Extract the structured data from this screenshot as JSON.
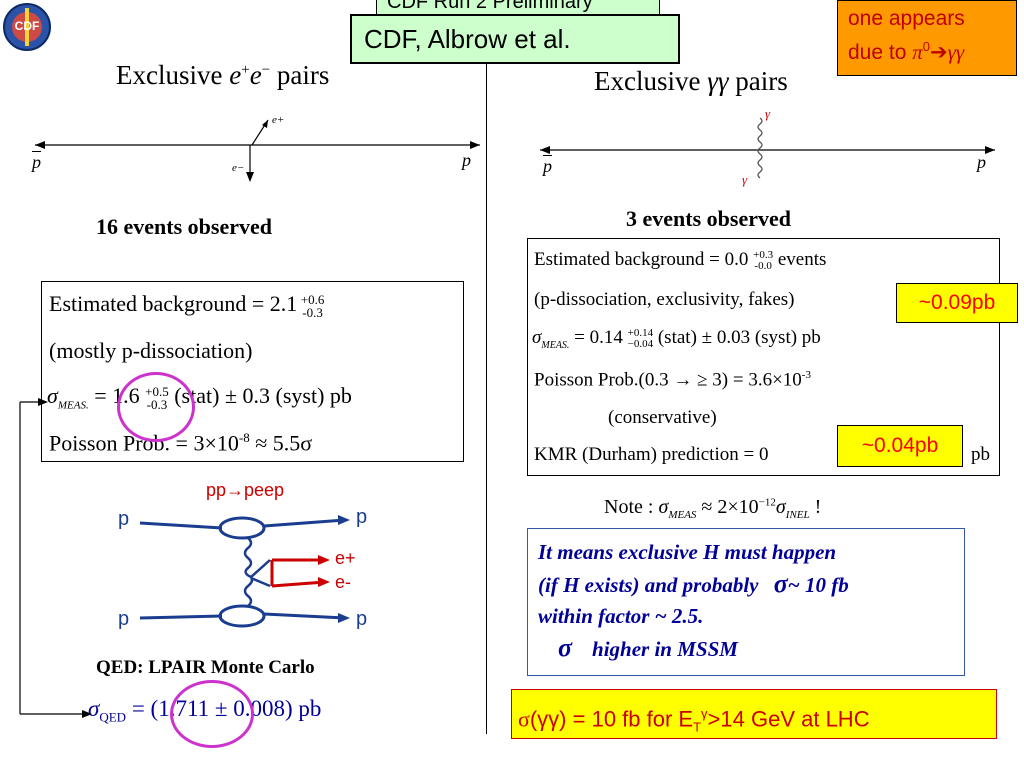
{
  "header": {
    "logo_text": "CDF",
    "cut_banner_text": "CDF Run 2 Preliminary",
    "citation": "CDF,  Albrow et al.",
    "note_line1": "one appears",
    "note_line2_prefix": "due to ",
    "note_pi": "π",
    "note_sup": "0",
    "note_arrow": "➔",
    "note_gg": "γγ"
  },
  "left": {
    "title_prefix": "Exclusive ",
    "title_e": "e",
    "title_plus": "+",
    "title_minus": "−",
    "title_suffix": " pairs",
    "diagram": {
      "pbar": "p",
      "p": "p",
      "eplus": "e+",
      "eminus": "e−"
    },
    "events": "16 events observed",
    "box": {
      "bg_label": "Estimated background = 2.1",
      "bg_up": "+0.6",
      "bg_down": "-0.3",
      "bg_source": "(mostly p-dissociation)",
      "sigma": "σ",
      "meas_sub": "MEAS.",
      "eq": " = ",
      "value": "1.6",
      "val_up": "+0.5",
      "val_down": "-0.3",
      "stat": " (stat) ± 0.3 (syst) pb",
      "poisson": "Poisson Prob. = 3×10",
      "poisson_exp": "-8",
      "poisson_sig": " ≈ 5.5σ"
    },
    "feynman": {
      "title": "pp→peep",
      "p_top_left": "p",
      "p_top_right": "p",
      "p_bot_left": "p",
      "p_bot_right": "p",
      "eplus": "e+",
      "eminus": "e-"
    },
    "mc_label": "QED: LPAIR Monte Carlo",
    "qed_sigma": "σ",
    "qed_sub": "QED",
    "qed_value": " = (1.711 ± 0.008) pb"
  },
  "right": {
    "title_prefix": "Exclusive ",
    "title_gg": "γγ",
    "title_suffix": " pairs",
    "diagram": {
      "pbar": "p",
      "p": "p",
      "g_top": "γ",
      "g_bot": "γ"
    },
    "events": "3 events observed",
    "box": {
      "bg_label": "Estimated background = 0.0",
      "bg_up": "+0.3",
      "bg_down": "-0.0",
      "bg_unit": " events",
      "bg_source": "(p-dissociation, exclusivity, fakes)",
      "sigma": "σ",
      "meas_sub": "MEAS.",
      "value": " = 0.14",
      "val_up": "+0.14",
      "val_down": "−0.04",
      "stat": " (stat) ± 0.03 (syst) pb",
      "poisson": "Poisson Prob.(0.3 → ≥ 3) = 3.6×10",
      "poisson_exp": "-3",
      "conservative": "(conservative)",
      "kmr": "KMR (Durham) prediction = 0",
      "kmr_unit": "pb"
    },
    "callout_top": "~0.09pb",
    "callout_mid": "~0.04pb",
    "note": {
      "prefix": "Note : ",
      "sigma": "σ",
      "meas": "MEAS",
      "approx": " ≈ 2×10",
      "exp": "−12",
      "sigma2": "σ",
      "inel": "INEL",
      "bang": " !"
    },
    "conclusion": {
      "line1": "It means exclusive H must happen",
      "line2": "(if H exists) and probably",
      "line2_sigma": "σ",
      "line2_value": "~ 10 fb",
      "line3": "within factor ~ 2.5.",
      "line4_sigma": "σ",
      "line4": "higher in MSSM"
    },
    "lhc": {
      "sigma": "σ",
      "gg": "(γγ)",
      "mid": " = 10 fb for E",
      "sub": "T",
      "sup": "γ",
      "tail": ">14 GeV at LHC"
    }
  },
  "colors": {
    "purple_circle": "#cc33cc",
    "callout_yellow": "#ffff00",
    "callout_red": "#ff0000",
    "note_orange": "#ff9900",
    "citation_green": "#ccffcc",
    "blue_text": "#000099",
    "diagram_red": "#cc0000",
    "feynman_blue": "#1a3d8f"
  }
}
